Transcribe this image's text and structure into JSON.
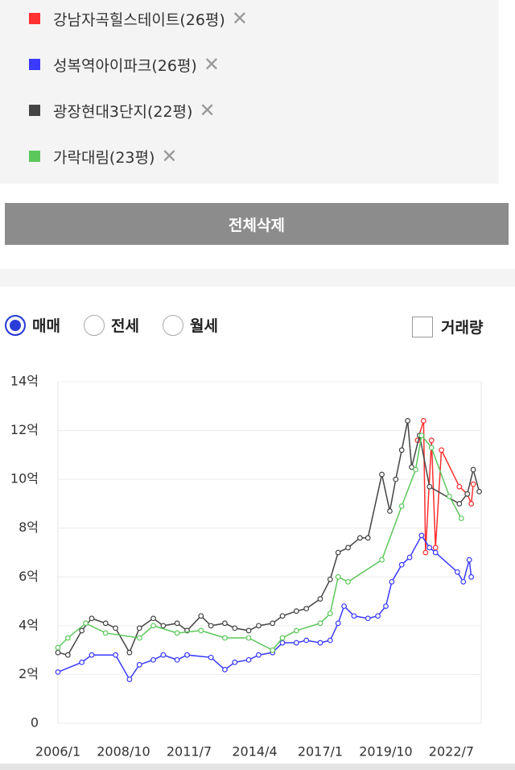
{
  "delete_all": "전체삭제",
  "controls": {
    "trade_types": [
      "매매",
      "전세",
      "월세"
    ],
    "selected": 0,
    "volume_label": "거래량"
  },
  "chart_data": {
    "type": "line",
    "xlim": [
      "2006/1",
      "2023/10"
    ],
    "xticks": [
      "2006/1",
      "2008/10",
      "2011/7",
      "2014/4",
      "2017/1",
      "2019/10",
      "2022/7"
    ],
    "ylim": [
      0,
      14
    ],
    "yticks": [
      0,
      {
        "value": 2,
        "label": "2억"
      },
      {
        "value": 4,
        "label": "4억"
      },
      {
        "value": 6,
        "label": "6억"
      },
      {
        "value": 8,
        "label": "8억"
      },
      {
        "value": 10,
        "label": "10억"
      },
      {
        "value": 12,
        "label": "12억"
      },
      {
        "value": 14,
        "label": "14억"
      }
    ],
    "grid": true,
    "series": [
      {
        "name": "강남자곡힐스테이트(26평)",
        "color": "#ff3030",
        "x": [
          "2021/2",
          "2021/5",
          "2021/6",
          "2021/9",
          "2021/11",
          "2022/2",
          "2022/11",
          "2023/3",
          "2023/5",
          "2023/6"
        ],
        "values": [
          11.6,
          12.4,
          7.0,
          11.6,
          7.2,
          11.2,
          9.7,
          9.4,
          9.0,
          9.8
        ]
      },
      {
        "name": "성복역아이파크(26평)",
        "color": "#3a3aff",
        "x": [
          "2006/1",
          "2007/1",
          "2007/6",
          "2008/6",
          "2009/1",
          "2009/6",
          "2010/1",
          "2010/6",
          "2011/1",
          "2011/6",
          "2012/6",
          "2013/1",
          "2013/6",
          "2014/1",
          "2014/6",
          "2015/1",
          "2015/6",
          "2016/1",
          "2016/6",
          "2017/1",
          "2017/6",
          "2017/10",
          "2018/1",
          "2018/6",
          "2019/1",
          "2019/6",
          "2019/10",
          "2020/1",
          "2020/6",
          "2020/10",
          "2021/4",
          "2021/8",
          "2021/11",
          "2022/10",
          "2023/1",
          "2023/4",
          "2023/5"
        ],
        "values": [
          2.1,
          2.5,
          2.8,
          2.8,
          1.8,
          2.4,
          2.6,
          2.8,
          2.6,
          2.8,
          2.7,
          2.2,
          2.5,
          2.6,
          2.8,
          2.9,
          3.3,
          3.3,
          3.4,
          3.3,
          3.4,
          4.1,
          4.8,
          4.4,
          4.3,
          4.4,
          4.8,
          5.8,
          6.5,
          6.8,
          7.7,
          7.2,
          7.0,
          6.2,
          5.8,
          6.7,
          6.0
        ]
      },
      {
        "name": "광장현대3단지(22평)",
        "color": "#444444",
        "x": [
          "2006/1",
          "2006/6",
          "2007/1",
          "2007/6",
          "2008/1",
          "2008/6",
          "2009/1",
          "2009/6",
          "2010/1",
          "2010/6",
          "2011/1",
          "2011/6",
          "2012/1",
          "2012/6",
          "2013/1",
          "2013/6",
          "2014/1",
          "2014/6",
          "2015/1",
          "2015/6",
          "2016/1",
          "2016/6",
          "2017/1",
          "2017/6",
          "2017/10",
          "2018/3",
          "2018/9",
          "2019/1",
          "2019/8",
          "2019/12",
          "2020/3",
          "2020/6",
          "2020/9",
          "2020/11",
          "2021/3",
          "2021/8",
          "2022/11",
          "2023/3",
          "2023/6",
          "2023/9"
        ],
        "values": [
          2.9,
          2.8,
          3.8,
          4.3,
          4.1,
          3.9,
          2.9,
          3.9,
          4.3,
          4.0,
          4.1,
          3.8,
          4.4,
          4.0,
          4.1,
          3.9,
          3.8,
          4.0,
          4.1,
          4.4,
          4.6,
          4.7,
          5.1,
          5.9,
          7.0,
          7.2,
          7.6,
          7.6,
          10.2,
          8.7,
          10.0,
          11.2,
          12.4,
          10.5,
          11.8,
          9.7,
          9.0,
          9.4,
          10.4,
          9.5
        ]
      },
      {
        "name": "가락대림(23평)",
        "color": "#5cc85c",
        "x": [
          "2006/1",
          "2006/6",
          "2007/3",
          "2008/1",
          "2009/6",
          "2010/1",
          "2011/1",
          "2012/1",
          "2013/1",
          "2014/1",
          "2015/1",
          "2015/6",
          "2016/1",
          "2017/1",
          "2017/6",
          "2017/10",
          "2018/3",
          "2019/8",
          "2020/6",
          "2021/1",
          "2021/4",
          "2021/9",
          "2022/6",
          "2022/12"
        ],
        "values": [
          3.1,
          3.5,
          4.1,
          3.7,
          3.5,
          4.0,
          3.7,
          3.8,
          3.5,
          3.5,
          3.0,
          3.5,
          3.8,
          4.1,
          4.5,
          6.0,
          5.8,
          6.7,
          8.9,
          10.4,
          11.8,
          11.3,
          9.3,
          8.4
        ]
      }
    ]
  }
}
